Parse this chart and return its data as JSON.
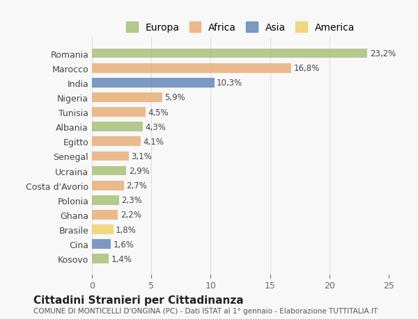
{
  "countries": [
    "Romania",
    "Marocco",
    "India",
    "Nigeria",
    "Tunisia",
    "Albania",
    "Egitto",
    "Senegal",
    "Ucraina",
    "Costa d'Avorio",
    "Polonia",
    "Ghana",
    "Brasile",
    "Cina",
    "Kosovo"
  ],
  "values": [
    23.2,
    16.8,
    10.3,
    5.9,
    4.5,
    4.3,
    4.1,
    3.1,
    2.9,
    2.7,
    2.3,
    2.2,
    1.8,
    1.6,
    1.4
  ],
  "labels": [
    "23,2%",
    "16,8%",
    "10,3%",
    "5,9%",
    "4,5%",
    "4,3%",
    "4,1%",
    "3,1%",
    "2,9%",
    "2,7%",
    "2,3%",
    "2,2%",
    "1,8%",
    "1,6%",
    "1,4%"
  ],
  "continents": [
    "Europa",
    "Africa",
    "Asia",
    "Africa",
    "Africa",
    "Europa",
    "Africa",
    "Africa",
    "Europa",
    "Africa",
    "Europa",
    "Africa",
    "America",
    "Asia",
    "Europa"
  ],
  "colors": {
    "Europa": "#a8c17c",
    "Africa": "#e8b07a",
    "Asia": "#6688bb",
    "America": "#f0d070"
  },
  "legend_order": [
    "Europa",
    "Africa",
    "Asia",
    "America"
  ],
  "title": "Cittadini Stranieri per Cittadinanza",
  "subtitle": "COMUNE DI MONTICELLI D'ONGINA (PC) - Dati ISTAT al 1° gennaio - Elaborazione TUTTITALIA.IT",
  "xlim": [
    0,
    25
  ],
  "xticks": [
    0,
    5,
    10,
    15,
    20,
    25
  ],
  "background_color": "#f8f8f8",
  "grid_color": "#dddddd"
}
